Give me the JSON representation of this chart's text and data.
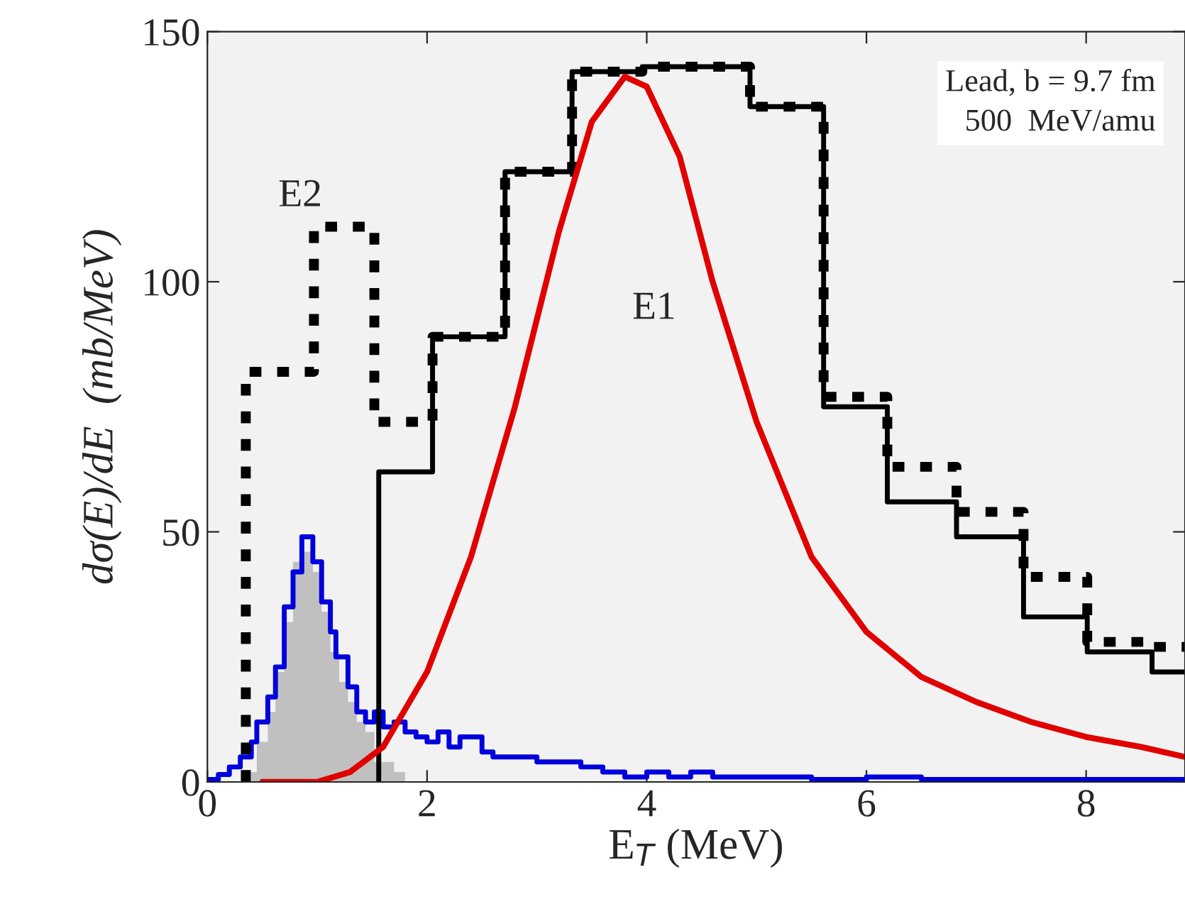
{
  "chart_data": {
    "type": "line",
    "xlabel": "E$_{T}$ (MeV)",
    "ylabel": "dσ(E)/dE  (mb/MeV)",
    "xlim": [
      0,
      8.9
    ],
    "ylim": [
      0,
      150
    ],
    "xticks": [
      0,
      2,
      4,
      6,
      8
    ],
    "yticks": [
      0,
      50,
      100,
      150
    ],
    "grid": false,
    "annotations": [
      "E2",
      "E1",
      "Lead, b = 9.7 fm\n500  MeV/amu"
    ],
    "series": [
      {
        "type": "area",
        "color": "#c0c0c0",
        "x": [
          0.2,
          0.35,
          0.45,
          0.55,
          0.62,
          0.7,
          0.78,
          0.86,
          0.96,
          1.04,
          1.12,
          1.2,
          1.28,
          1.36,
          1.44,
          1.52,
          1.7,
          1.8
        ],
        "values": [
          0,
          2,
          8,
          14,
          22,
          32,
          44,
          46,
          42,
          34,
          26,
          20,
          16,
          12,
          10,
          4,
          2,
          0
        ]
      },
      {
        "type": "step",
        "color": "#0000dd",
        "line_style": "solid",
        "x": [
          0.0,
          0.1,
          0.2,
          0.3,
          0.4,
          0.45,
          0.55,
          0.62,
          0.7,
          0.78,
          0.86,
          0.96,
          1.04,
          1.12,
          1.17,
          1.28,
          1.36,
          1.44,
          1.52,
          1.6,
          1.7,
          1.8,
          1.9,
          2.0,
          2.1,
          2.2,
          2.3,
          2.4,
          2.5,
          2.6,
          2.8,
          3.0,
          3.2,
          3.4,
          3.6,
          3.8,
          4.0,
          4.2,
          4.4,
          4.6,
          5.0,
          5.5,
          6.0,
          6.5,
          7.0,
          8.9
        ],
        "values": [
          0.5,
          1.5,
          3,
          5,
          8,
          12,
          17,
          23,
          35,
          42,
          49,
          44,
          36,
          30,
          25,
          19,
          14,
          12,
          14,
          11,
          12,
          10,
          9,
          8,
          10,
          7,
          9,
          9,
          6,
          5,
          5,
          4,
          4,
          3,
          2,
          1,
          2,
          1,
          2,
          1,
          1,
          0.5,
          1,
          0.5,
          0.5,
          0.5
        ]
      },
      {
        "type": "step",
        "color": "#000000",
        "line_style": "dashed",
        "x": [
          0.35,
          0.35,
          0.97,
          1.52,
          2.05,
          2.71,
          3.32,
          3.96,
          4.94,
          5.61,
          6.19,
          6.82,
          7.43,
          8.01,
          8.6,
          8.9
        ],
        "values": [
          0,
          82,
          111,
          72,
          89,
          122,
          142,
          143,
          135,
          77,
          63,
          54,
          41,
          28,
          27,
          27
        ]
      },
      {
        "type": "step",
        "color": "#000000",
        "line_style": "solid",
        "x": [
          1.56,
          1.56,
          2.05,
          2.71,
          3.32,
          3.96,
          4.94,
          5.61,
          6.19,
          6.82,
          7.43,
          8.01,
          8.6,
          8.9
        ],
        "values": [
          0,
          62,
          89,
          122,
          142,
          143,
          135,
          75,
          56,
          49,
          33,
          26,
          22,
          22
        ]
      },
      {
        "color": "#e00000",
        "line_style": "solid",
        "x": [
          0.5,
          1.0,
          1.3,
          1.6,
          2.0,
          2.4,
          2.8,
          3.2,
          3.5,
          3.8,
          4.0,
          4.3,
          4.6,
          5.0,
          5.5,
          6.0,
          6.5,
          7.0,
          7.5,
          8.0,
          8.5,
          8.9
        ],
        "values": [
          0,
          0,
          2,
          7,
          22,
          45,
          75,
          110,
          132,
          141,
          139,
          125,
          100,
          72,
          45,
          30,
          21,
          16,
          12,
          9,
          7,
          5
        ]
      }
    ]
  }
}
